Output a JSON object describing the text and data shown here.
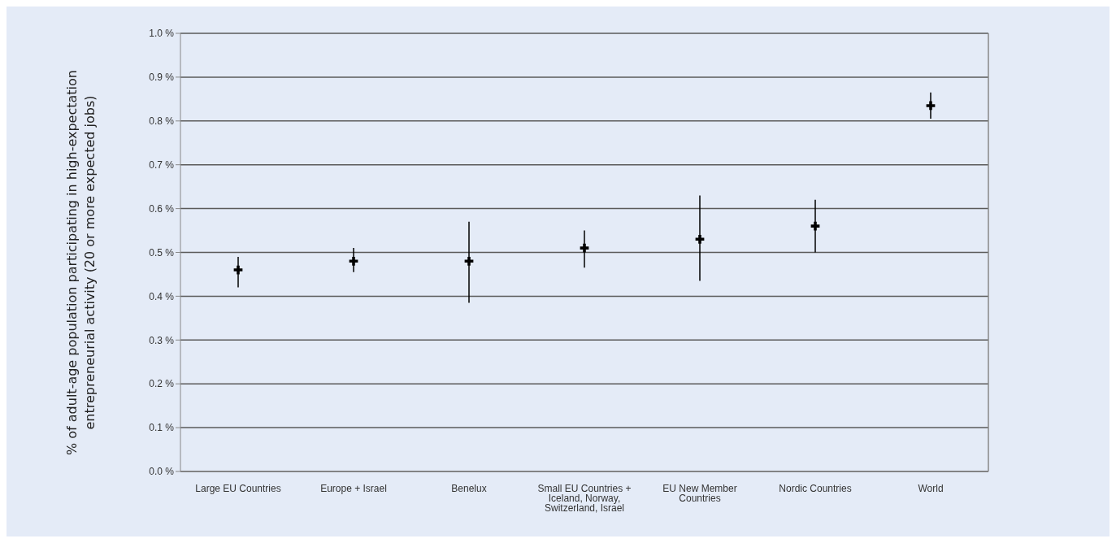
{
  "chart_data": {
    "type": "scatter",
    "ylabel": "% of adult-age population participating in high-expectation entrepreneurial activity (20 or more expected jobs)",
    "categories": [
      "Large EU Countries",
      "Europe + Israel",
      "Benelux",
      "Small EU Countries + Iceland, Norway, Switzerland, Israel",
      "EU New Member Countries",
      "Nordic Countries",
      "World"
    ],
    "values": [
      0.46,
      0.48,
      0.48,
      0.51,
      0.53,
      0.56,
      0.835
    ],
    "errors": [
      [
        0.42,
        0.49
      ],
      [
        0.455,
        0.51
      ],
      [
        0.385,
        0.57
      ],
      [
        0.465,
        0.55
      ],
      [
        0.435,
        0.63
      ],
      [
        0.5,
        0.62
      ],
      [
        0.805,
        0.865
      ]
    ],
    "color": "#000000",
    "marker": "cross",
    "ylim": [
      0,
      1
    ],
    "yticks": [
      {
        "value": 0,
        "label": "0.0 %"
      },
      {
        "value": 0.1,
        "label": "0.1 %"
      },
      {
        "value": 0.2,
        "label": "0.2 %"
      },
      {
        "value": 0.3,
        "label": "0.3 %"
      },
      {
        "value": 0.4,
        "label": "0.4 %"
      },
      {
        "value": 0.5,
        "label": "0.5 %"
      },
      {
        "value": 0.6,
        "label": "0.6 %"
      },
      {
        "value": 0.7,
        "label": "0.7 %"
      },
      {
        "value": 0.8,
        "label": "0.8 %"
      },
      {
        "value": 0.9,
        "label": "0.9 %"
      },
      {
        "value": 1,
        "label": "1.0 %"
      }
    ],
    "grid": "y"
  }
}
